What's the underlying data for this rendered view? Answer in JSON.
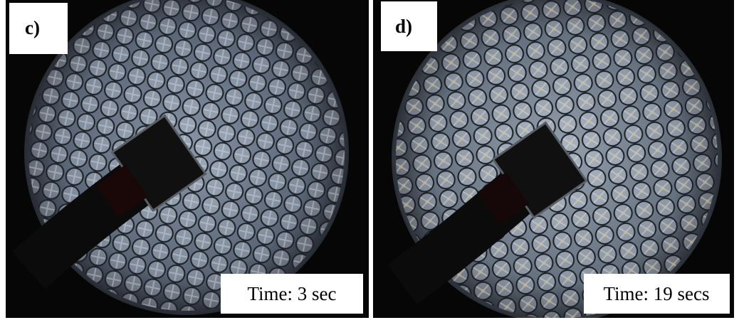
{
  "panels": [
    {
      "label": "c)",
      "caption": "Time: 3 sec"
    },
    {
      "label": "d)",
      "caption": "Time: 19 secs"
    }
  ]
}
